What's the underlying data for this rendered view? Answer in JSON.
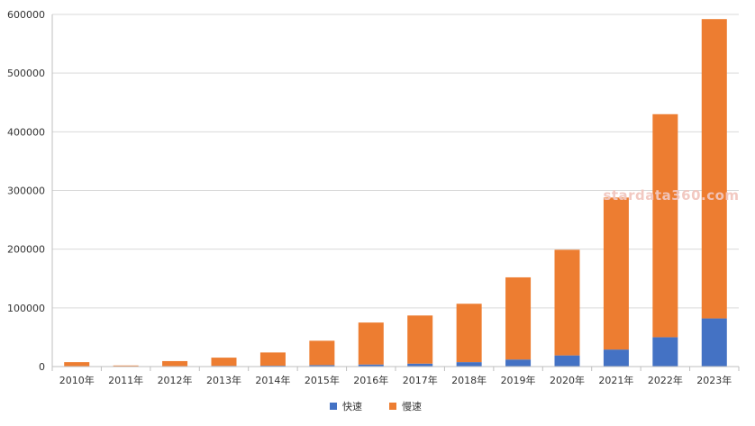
{
  "chart_data": {
    "type": "bar",
    "stacked": true,
    "title": "",
    "xlabel": "",
    "ylabel": "",
    "categories": [
      "2010年",
      "2011年",
      "2012年",
      "2013年",
      "2014年",
      "2015年",
      "2016年",
      "2017年",
      "2018年",
      "2019年",
      "2020年",
      "2021年",
      "2022年",
      "2023年"
    ],
    "series": [
      {
        "name": "快速",
        "color": "#4472c4",
        "values": [
          500,
          300,
          800,
          1200,
          1500,
          2500,
          3500,
          5000,
          7500,
          12000,
          19000,
          29000,
          50000,
          82000
        ]
      },
      {
        "name": "慢速",
        "color": "#ed7d31",
        "values": [
          7000,
          1500,
          8500,
          14000,
          22500,
          41500,
          71500,
          82000,
          99500,
          140000,
          180000,
          259000,
          380000,
          510000
        ]
      }
    ],
    "ylim": [
      0,
      600000
    ],
    "yticks": [
      "0",
      "100000",
      "200000",
      "300000",
      "400000",
      "500000",
      "600000"
    ],
    "grid": true,
    "legend_position": "bottom-center",
    "watermark": "stardata360.com"
  }
}
